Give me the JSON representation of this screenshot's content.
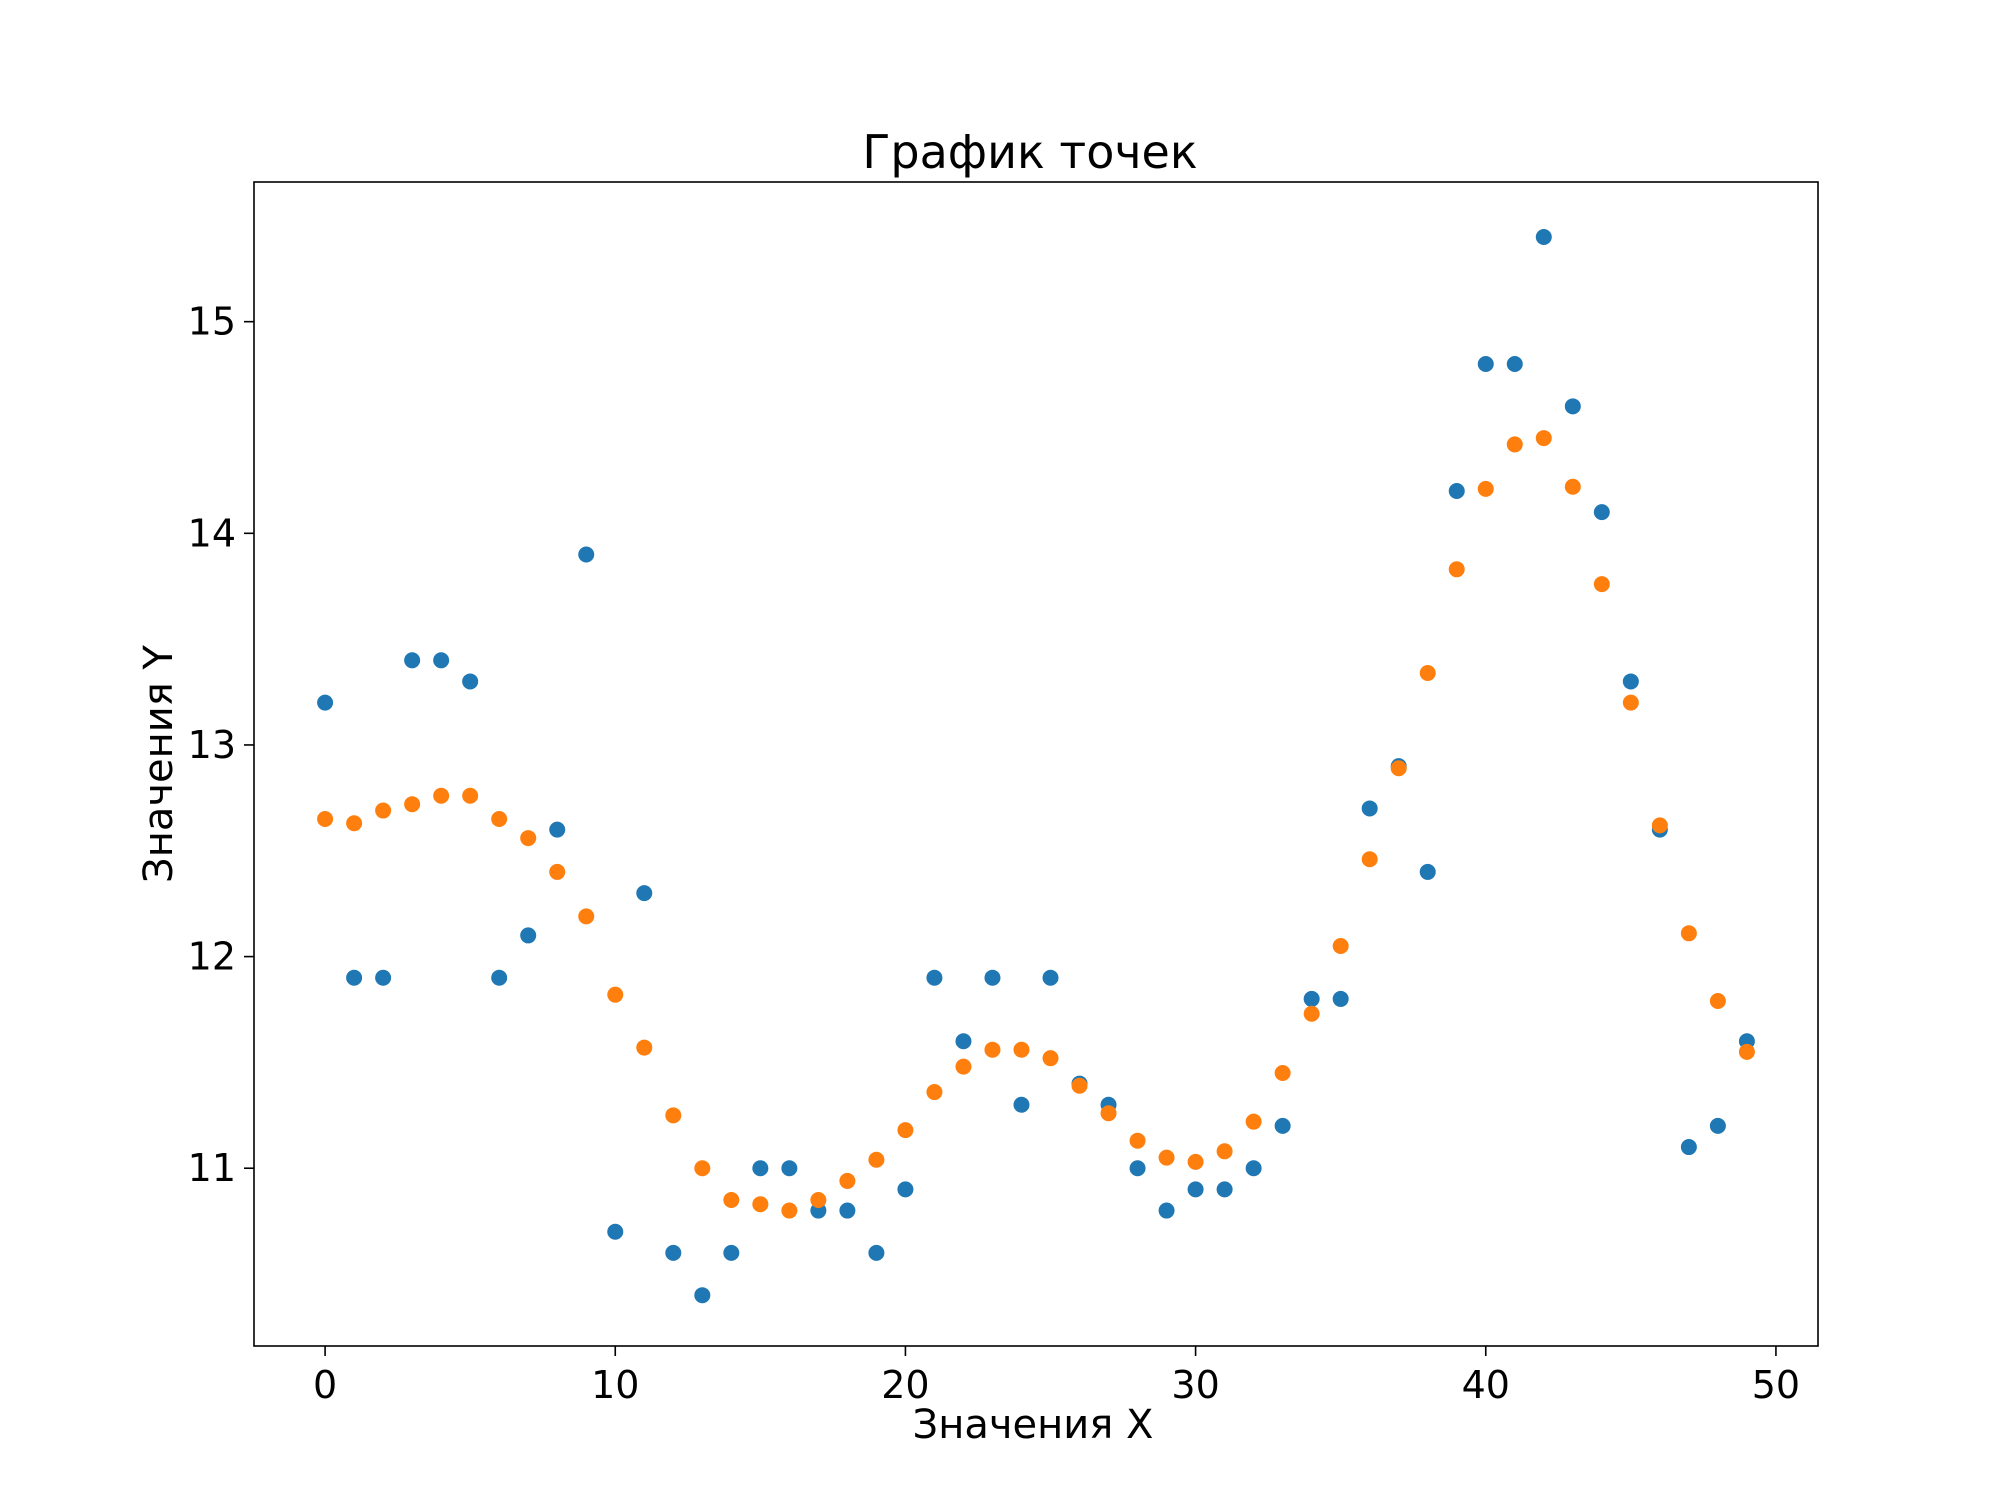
{
  "chart_data": {
    "type": "scatter",
    "title": "График точек",
    "xlabel": "Значения X",
    "ylabel": "Значения Y",
    "xlim": [
      -2.45,
      51.45
    ],
    "ylim": [
      10.16,
      15.66
    ],
    "x_ticks": [
      0,
      10,
      20,
      30,
      40,
      50
    ],
    "y_ticks": [
      11,
      12,
      13,
      14,
      15
    ],
    "grid": false,
    "series": [
      {
        "color": "#1f77b4",
        "x": [
          0,
          1,
          2,
          3,
          4,
          5,
          6,
          7,
          8,
          9,
          10,
          11,
          12,
          13,
          14,
          15,
          16,
          17,
          18,
          19,
          20,
          21,
          22,
          23,
          24,
          25,
          26,
          27,
          28,
          29,
          30,
          31,
          32,
          33,
          34,
          35,
          36,
          37,
          38,
          39,
          40,
          41,
          42,
          43,
          44,
          45,
          46,
          47,
          48,
          49
        ],
        "y": [
          13.2,
          11.9,
          11.9,
          13.4,
          13.4,
          13.3,
          11.9,
          12.1,
          12.6,
          13.9,
          10.7,
          12.3,
          10.6,
          10.4,
          10.6,
          11.0,
          11.0,
          10.8,
          10.8,
          10.6,
          10.9,
          11.9,
          11.6,
          11.9,
          11.3,
          11.9,
          11.4,
          11.3,
          11.0,
          10.8,
          10.9,
          10.9,
          11.0,
          11.2,
          11.8,
          11.8,
          12.7,
          12.9,
          12.4,
          14.2,
          14.8,
          14.8,
          15.4,
          14.6,
          14.1,
          13.3,
          12.6,
          11.1,
          11.2,
          11.6
        ]
      },
      {
        "color": "#ff7f0e",
        "x": [
          0,
          1,
          2,
          3,
          4,
          5,
          6,
          7,
          8,
          9,
          10,
          11,
          12,
          13,
          14,
          15,
          16,
          17,
          18,
          19,
          20,
          21,
          22,
          23,
          24,
          25,
          26,
          27,
          28,
          29,
          30,
          31,
          32,
          33,
          34,
          35,
          36,
          37,
          38,
          39,
          40,
          41,
          42,
          43,
          44,
          45,
          46,
          47,
          48,
          49
        ],
        "y": [
          12.65,
          12.63,
          12.69,
          12.72,
          12.76,
          12.76,
          12.65,
          12.56,
          12.4,
          12.19,
          11.82,
          11.57,
          11.25,
          11.0,
          10.85,
          10.83,
          10.8,
          10.85,
          10.94,
          11.04,
          11.18,
          11.36,
          11.48,
          11.56,
          11.56,
          11.52,
          11.39,
          11.26,
          11.13,
          11.05,
          11.03,
          11.08,
          11.22,
          11.45,
          11.73,
          12.05,
          12.46,
          12.89,
          13.34,
          13.83,
          14.21,
          14.42,
          14.45,
          14.22,
          13.76,
          13.2,
          12.62,
          12.11,
          11.79,
          11.55
        ]
      }
    ]
  }
}
